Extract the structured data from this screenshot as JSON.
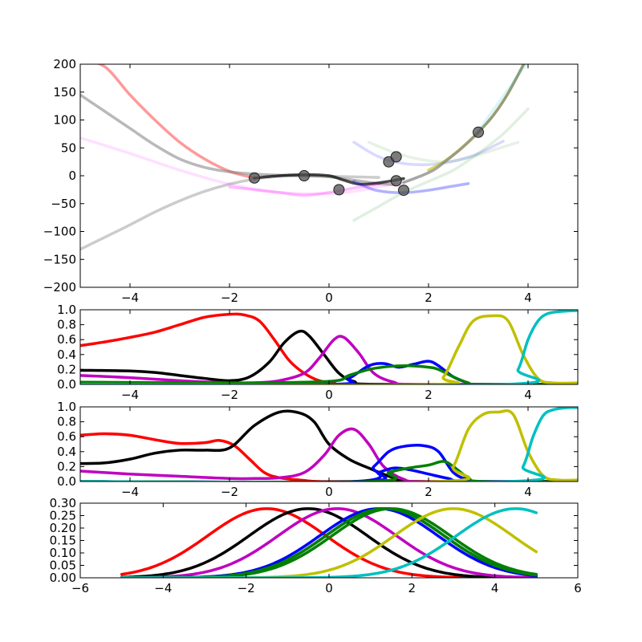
{
  "chart_data": [
    {
      "type": "line",
      "title": "",
      "xlabel": "",
      "ylabel": "",
      "xlim": [
        -5,
        5
      ],
      "ylim": [
        -200,
        200
      ],
      "xticks": [
        -4,
        -2,
        0,
        2,
        4
      ],
      "xtick_labels": [
        "−4",
        "−2",
        "0",
        "2",
        "4"
      ],
      "yticks": [
        -200,
        -150,
        -100,
        -50,
        0,
        50,
        100,
        150,
        200
      ],
      "ytick_labels": [
        "−200",
        "−150",
        "−100",
        "−50",
        "0",
        "50",
        "100",
        "150",
        "200"
      ],
      "grid": false,
      "points": {
        "x": [
          -1.5,
          -0.5,
          0.2,
          1.2,
          1.35,
          1.35,
          1.5,
          3.0
        ],
        "y": [
          -4,
          0,
          -25,
          25,
          34,
          -9,
          -26,
          78
        ],
        "color": "#505050"
      },
      "series": [
        {
          "color": "#ff0000",
          "opacity": 0.4,
          "x": [
            -5,
            -4.5,
            -4,
            -3.5,
            -3,
            -2.5,
            -2,
            -1.5
          ],
          "y": [
            210,
            195,
            145,
            100,
            60,
            30,
            8,
            -4
          ]
        },
        {
          "color": "#808080",
          "opacity": 0.55,
          "x": [
            -5,
            -4.5,
            -4,
            -3.5,
            -3,
            -2.5,
            -2,
            -1.5,
            -1,
            -0.5,
            0,
            0.5,
            1,
            1.3
          ],
          "y": [
            145,
            115,
            85,
            55,
            30,
            15,
            7,
            3,
            1,
            0,
            -2,
            -8,
            -14,
            -16
          ]
        },
        {
          "color": "#808080",
          "opacity": 0.4,
          "x": [
            -5,
            -4.5,
            -4,
            -3.5,
            -3,
            -2.5,
            -2,
            -1.5,
            -1,
            -0.5,
            0,
            0.5,
            1
          ],
          "y": [
            -132,
            -110,
            -88,
            -65,
            -45,
            -28,
            -15,
            -6,
            -1,
            0,
            -1,
            -2,
            -3
          ]
        },
        {
          "color": "#000000",
          "opacity": 0.7,
          "x": [
            -1.5,
            -1,
            -0.5,
            0,
            0.3,
            0.6,
            0.9,
            1.2,
            1.5
          ],
          "y": [
            -4,
            0,
            2,
            0,
            -8,
            -15,
            -14,
            -10,
            -5
          ]
        },
        {
          "color": "#ff00ff",
          "opacity": 0.12,
          "x": [
            -5,
            -4,
            -3,
            -2,
            -1,
            0,
            0.5,
            1,
            1.5
          ],
          "y": [
            68,
            40,
            10,
            -15,
            -30,
            -32,
            -28,
            -20,
            -12
          ]
        },
        {
          "color": "#ff00ff",
          "opacity": 0.25,
          "x": [
            -2,
            -1.5,
            -1,
            -0.5,
            0,
            0.5,
            1
          ],
          "y": [
            -20,
            -25,
            -30,
            -35,
            -30,
            -22,
            -15
          ]
        },
        {
          "color": "#0000ff",
          "opacity": 0.3,
          "x": [
            0.5,
            0.9,
            1.3,
            1.6,
            2,
            2.4,
            2.8
          ],
          "y": [
            -10,
            -25,
            -30,
            -30,
            -26,
            -20,
            -14
          ]
        },
        {
          "color": "#0000ff",
          "opacity": 0.15,
          "x": [
            0.5,
            1,
            1.5,
            2,
            2.5,
            3,
            3.5
          ],
          "y": [
            60,
            34,
            22,
            20,
            26,
            40,
            62
          ]
        },
        {
          "color": "#008000",
          "opacity": 0.12,
          "x": [
            0.5,
            1,
            1.5,
            2,
            2.5,
            3,
            3.5,
            4
          ],
          "y": [
            -80,
            -55,
            -30,
            -10,
            10,
            40,
            75,
            120
          ]
        },
        {
          "color": "#008000",
          "opacity": 0.1,
          "x": [
            0.8,
            1.3,
            1.8,
            2.3,
            2.8,
            3.3,
            3.8
          ],
          "y": [
            60,
            42,
            30,
            25,
            32,
            46,
            60
          ]
        },
        {
          "color": "#c0c000",
          "opacity": 0.6,
          "x": [
            2,
            2.3,
            2.6,
            3,
            3.3,
            3.6,
            4
          ],
          "y": [
            10,
            25,
            45,
            78,
            108,
            148,
            215
          ]
        },
        {
          "color": "#808080",
          "opacity": 0.7,
          "x": [
            1.5,
            1.8,
            2.1,
            2.4,
            2.7,
            3,
            3.3,
            3.6,
            4
          ],
          "y": [
            -12,
            -2,
            10,
            30,
            52,
            78,
            108,
            148,
            215
          ]
        },
        {
          "color": "#00c0c0",
          "opacity": 0.15,
          "x": [
            3,
            3.4,
            3.8,
            4.2
          ],
          "y": [
            80,
            130,
            180,
            230
          ]
        }
      ]
    },
    {
      "type": "line",
      "title": "",
      "xlim": [
        -5,
        5
      ],
      "ylim": [
        0,
        1.0
      ],
      "xticks": [
        -4,
        -2,
        0,
        2,
        4
      ],
      "xtick_labels": [
        "−4",
        "−2",
        "0",
        "2",
        "4"
      ],
      "yticks": [
        0,
        0.2,
        0.4,
        0.6,
        0.8,
        1.0
      ],
      "ytick_labels": [
        "0.0",
        "0.2",
        "0.4",
        "0.6",
        "0.8",
        "1.0"
      ],
      "grid": false,
      "series": [
        {
          "color": "#ff0000",
          "x": [
            -5,
            -4.5,
            -4,
            -3.5,
            -3,
            -2.5,
            -2,
            -1.7,
            -1.4,
            -1.1,
            -0.8,
            -0.5,
            -0.2,
            0.1,
            0.5,
            5
          ],
          "y": [
            0.52,
            0.57,
            0.63,
            0.7,
            0.8,
            0.9,
            0.94,
            0.93,
            0.85,
            0.6,
            0.32,
            0.15,
            0.05,
            0.02,
            0.0,
            0.0
          ]
        },
        {
          "color": "#000000",
          "x": [
            -5,
            -4,
            -3.5,
            -3,
            -2.5,
            -2,
            -1.6,
            -1.2,
            -0.9,
            -0.6,
            -0.4,
            -0.1,
            0.2,
            0.5,
            1,
            5
          ],
          "y": [
            0.19,
            0.18,
            0.16,
            0.12,
            0.08,
            0.05,
            0.1,
            0.3,
            0.56,
            0.71,
            0.65,
            0.4,
            0.15,
            0.04,
            0.0,
            0.0
          ]
        },
        {
          "color": "#c000c0",
          "x": [
            -5,
            -4,
            -3,
            -2,
            -1.5,
            -1,
            -0.5,
            -0.2,
            0.1,
            0.3,
            0.6,
            0.9,
            1.3,
            1.8,
            5
          ],
          "y": [
            0.12,
            0.09,
            0.05,
            0.02,
            0.02,
            0.05,
            0.15,
            0.35,
            0.6,
            0.63,
            0.42,
            0.15,
            0.03,
            0.0,
            0.0
          ]
        },
        {
          "color": "#0000ff",
          "x": [
            -5,
            0,
            0.4,
            0.8,
            1.1,
            1.4,
            1.7,
            2.0,
            2.2,
            2.5,
            2.8,
            3,
            5
          ],
          "y": [
            0.0,
            0.0,
            0.08,
            0.25,
            0.28,
            0.23,
            0.27,
            0.31,
            0.25,
            0.1,
            0.02,
            0.0,
            0.0
          ]
        },
        {
          "color": "#008000",
          "x": [
            -5,
            -2,
            0,
            0.4,
            0.8,
            1.2,
            1.6,
            2.0,
            2.2,
            2.5,
            2.8,
            3,
            5
          ],
          "y": [
            0.03,
            0.02,
            0.04,
            0.12,
            0.2,
            0.24,
            0.25,
            0.23,
            0.2,
            0.1,
            0.02,
            0.0,
            0.0
          ]
        },
        {
          "color": "#c0c000",
          "x": [
            -5,
            2,
            2.3,
            2.6,
            2.9,
            3.3,
            3.6,
            3.9,
            4.2,
            4.5,
            5
          ],
          "y": [
            0.0,
            0.0,
            0.1,
            0.5,
            0.85,
            0.92,
            0.85,
            0.4,
            0.08,
            0.02,
            0.02
          ]
        },
        {
          "color": "#00c0c0",
          "x": [
            -5,
            3.5,
            3.8,
            4.0,
            4.2,
            4.4,
            4.7,
            5
          ],
          "y": [
            0.0,
            0.0,
            0.2,
            0.6,
            0.85,
            0.95,
            0.98,
            0.99
          ]
        }
      ]
    },
    {
      "type": "line",
      "title": "",
      "xlim": [
        -5,
        5
      ],
      "ylim": [
        0,
        1.0
      ],
      "xticks": [
        -4,
        -2,
        0,
        2,
        4
      ],
      "xtick_labels": [
        "−4",
        "−2",
        "0",
        "2",
        "4"
      ],
      "yticks": [
        0,
        0.2,
        0.4,
        0.6,
        0.8,
        1.0
      ],
      "ytick_labels": [
        "0.0",
        "0.2",
        "0.4",
        "0.6",
        "0.8",
        "1.0"
      ],
      "grid": false,
      "series": [
        {
          "color": "#ff0000",
          "x": [
            -5,
            -4.5,
            -4,
            -3.5,
            -3,
            -2.5,
            -2.2,
            -1.9,
            -1.6,
            -1.3,
            -1,
            -0.6,
            -0.2,
            0.5,
            5
          ],
          "y": [
            0.62,
            0.64,
            0.62,
            0.56,
            0.51,
            0.52,
            0.55,
            0.48,
            0.3,
            0.12,
            0.05,
            0.02,
            0.0,
            0.0,
            0.0
          ]
        },
        {
          "color": "#000000",
          "x": [
            -5,
            -4.5,
            -4,
            -3.5,
            -3,
            -2.5,
            -2,
            -1.5,
            -1,
            -0.6,
            -0.3,
            0,
            0.4,
            0.8,
            1.3,
            1.8,
            5
          ],
          "y": [
            0.24,
            0.25,
            0.3,
            0.38,
            0.42,
            0.42,
            0.45,
            0.75,
            0.93,
            0.92,
            0.8,
            0.5,
            0.3,
            0.18,
            0.05,
            0.0,
            0.0
          ]
        },
        {
          "color": "#c000c0",
          "x": [
            -5,
            -4,
            -3,
            -2,
            -1.5,
            -1,
            -0.5,
            -0.1,
            0.2,
            0.5,
            0.8,
            1.1,
            1.5,
            2,
            5
          ],
          "y": [
            0.14,
            0.1,
            0.07,
            0.04,
            0.04,
            0.05,
            0.12,
            0.35,
            0.62,
            0.7,
            0.5,
            0.2,
            0.03,
            0.0,
            0.0
          ]
        },
        {
          "color": "#0000ff",
          "x": [
            -5,
            0.5,
            0.9,
            1.2,
            1.5,
            1.9,
            2.2,
            2.5,
            2.8,
            3,
            5
          ],
          "y": [
            0.0,
            0.0,
            0.2,
            0.4,
            0.47,
            0.48,
            0.4,
            0.12,
            0.02,
            0.0,
            0.0
          ]
        },
        {
          "color": "#0000ff",
          "x": [
            -5,
            0.6,
            1,
            1.3,
            1.6,
            2,
            2.4,
            2.8,
            5
          ],
          "y": [
            0.0,
            0.0,
            0.12,
            0.18,
            0.16,
            0.1,
            0.04,
            0.0,
            0.0
          ]
        },
        {
          "color": "#008000",
          "x": [
            -5,
            0.8,
            1.2,
            1.6,
            2,
            2.3,
            2.5,
            2.8,
            3.1,
            5
          ],
          "y": [
            0.0,
            0.0,
            0.12,
            0.18,
            0.22,
            0.27,
            0.2,
            0.05,
            0.0,
            0.0
          ]
        },
        {
          "color": "#c0c000",
          "x": [
            -5,
            2.2,
            2.5,
            2.8,
            3.1,
            3.4,
            3.7,
            4,
            4.3,
            4.6,
            5
          ],
          "y": [
            0.0,
            0.0,
            0.2,
            0.7,
            0.9,
            0.93,
            0.9,
            0.4,
            0.08,
            0.02,
            0.02
          ]
        },
        {
          "color": "#00c0c0",
          "x": [
            -5,
            3.6,
            3.9,
            4.1,
            4.3,
            4.5,
            4.8,
            5
          ],
          "y": [
            0.0,
            0.0,
            0.2,
            0.6,
            0.88,
            0.96,
            0.99,
            0.99
          ]
        }
      ]
    },
    {
      "type": "line",
      "title": "",
      "xlim": [
        -6,
        6
      ],
      "ylim": [
        0,
        0.3
      ],
      "xticks": [
        -6,
        -4,
        -2,
        0,
        2,
        4,
        6
      ],
      "xtick_labels": [
        "−6",
        "−4",
        "−2",
        "0",
        "2",
        "4",
        "6"
      ],
      "yticks": [
        0,
        0.05,
        0.1,
        0.15,
        0.2,
        0.25,
        0.3
      ],
      "ytick_labels": [
        "0.00",
        "0.05",
        "0.10",
        "0.15",
        "0.20",
        "0.25",
        "0.30"
      ],
      "grid": false,
      "series": [
        {
          "color": "#ff0000",
          "gaussian": {
            "mu": -1.5,
            "sigma": 1.43,
            "peak": 0.278
          }
        },
        {
          "color": "#000000",
          "gaussian": {
            "mu": -0.5,
            "sigma": 1.43,
            "peak": 0.278
          }
        },
        {
          "color": "#c000c0",
          "gaussian": {
            "mu": 0.2,
            "sigma": 1.43,
            "peak": 0.278
          }
        },
        {
          "color": "#0000ff",
          "gaussian": {
            "mu": 1.2,
            "sigma": 1.43,
            "peak": 0.278
          }
        },
        {
          "color": "#0000ff",
          "gaussian": {
            "mu": 1.35,
            "sigma": 1.43,
            "peak": 0.278
          }
        },
        {
          "color": "#008000",
          "gaussian": {
            "mu": 1.35,
            "sigma": 1.43,
            "peak": 0.278
          }
        },
        {
          "color": "#008000",
          "gaussian": {
            "mu": 1.5,
            "sigma": 1.43,
            "peak": 0.278
          }
        },
        {
          "color": "#c0c000",
          "gaussian": {
            "mu": 3.0,
            "sigma": 1.43,
            "peak": 0.278
          }
        },
        {
          "color": "#00c0c0",
          "gaussian": {
            "mu": 4.5,
            "sigma": 1.43,
            "peak": 0.278
          }
        }
      ],
      "x_range": [
        -5,
        5
      ]
    }
  ]
}
